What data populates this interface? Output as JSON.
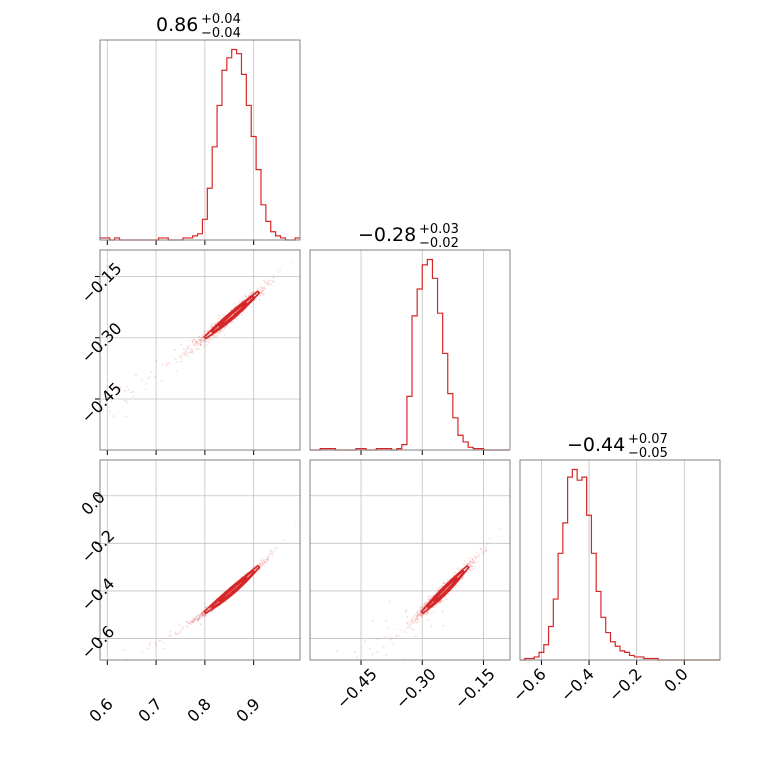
{
  "chart_data": {
    "type": "corner",
    "color": "#d62728",
    "parameters": [
      {
        "title": {
          "median": "0.86",
          "plus": "+0.04",
          "minus": "−0.04"
        },
        "range": [
          0.585,
          0.995
        ],
        "ticks": [
          0.6,
          0.7,
          0.8,
          0.9
        ],
        "tick_labels": [
          "0.6",
          "0.7",
          "0.8",
          "0.9"
        ],
        "hist_x": [
          0.585,
          0.595,
          0.605,
          0.615,
          0.625,
          0.635,
          0.645,
          0.655,
          0.665,
          0.675,
          0.685,
          0.695,
          0.705,
          0.715,
          0.725,
          0.735,
          0.745,
          0.755,
          0.765,
          0.775,
          0.785,
          0.795,
          0.805,
          0.815,
          0.825,
          0.835,
          0.845,
          0.855,
          0.865,
          0.875,
          0.885,
          0.895,
          0.905,
          0.915,
          0.925,
          0.935,
          0.945,
          0.955,
          0.965,
          0.975,
          0.985,
          0.995
        ],
        "hist_y": [
          1,
          1,
          0,
          1,
          0,
          0,
          0,
          0,
          0,
          0,
          0,
          0,
          1,
          1,
          0,
          0,
          0,
          1,
          1,
          2,
          3,
          10,
          25,
          45,
          65,
          82,
          88,
          92,
          90,
          80,
          65,
          50,
          34,
          17,
          9,
          4,
          2,
          1,
          0,
          0,
          1
        ]
      },
      {
        "title": {
          "median": "−0.28",
          "plus": "+0.03",
          "minus": "−0.02"
        },
        "range": [
          -0.575,
          -0.085
        ],
        "ticks": [
          -0.45,
          -0.3,
          -0.15
        ],
        "tick_labels": [
          "−0.45",
          "−0.30",
          "−0.15"
        ],
        "hist_x": [
          -0.575,
          -0.5625,
          -0.55,
          -0.5375,
          -0.525,
          -0.5125,
          -0.5,
          -0.4875,
          -0.475,
          -0.4625,
          -0.45,
          -0.4375,
          -0.425,
          -0.4125,
          -0.4,
          -0.3875,
          -0.375,
          -0.3625,
          -0.35,
          -0.3375,
          -0.325,
          -0.3125,
          -0.3,
          -0.2875,
          -0.275,
          -0.2625,
          -0.25,
          -0.2375,
          -0.225,
          -0.2125,
          -0.2,
          -0.1875,
          -0.175,
          -0.1625,
          -0.15,
          -0.1375,
          -0.125,
          -0.1125,
          -0.1,
          -0.0875
        ],
        "hist_y": [
          0,
          0,
          1,
          1,
          1,
          0,
          0,
          0,
          0,
          1,
          1,
          0,
          0,
          1,
          1,
          1,
          0,
          1,
          4,
          40,
          100,
          120,
          138,
          142,
          128,
          102,
          72,
          42,
          24,
          11,
          6,
          2,
          1,
          1,
          0,
          0,
          0,
          0,
          0
        ]
      },
      {
        "title": {
          "median": "−0.44",
          "plus": "+0.07",
          "minus": "−0.05"
        },
        "range": [
          -0.69,
          0.15
        ],
        "ticks": [
          -0.6,
          -0.4,
          -0.2,
          0.0
        ],
        "tick_labels": [
          "−0.6",
          "−0.4",
          "−0.2",
          "0.0"
        ],
        "hist_x": [
          -0.69,
          -0.67,
          -0.65,
          -0.63,
          -0.61,
          -0.59,
          -0.57,
          -0.55,
          -0.53,
          -0.51,
          -0.49,
          -0.47,
          -0.45,
          -0.43,
          -0.41,
          -0.39,
          -0.37,
          -0.35,
          -0.33,
          -0.31,
          -0.29,
          -0.27,
          -0.25,
          -0.23,
          -0.21,
          -0.19,
          -0.17,
          -0.15,
          -0.13,
          -0.11,
          -0.09,
          -0.07,
          -0.05,
          -0.03,
          -0.01,
          0.01,
          0.03,
          0.05,
          0.07,
          0.09,
          0.11,
          0.13,
          0.15
        ],
        "hist_y": [
          0,
          1,
          1,
          2,
          5,
          10,
          22,
          40,
          70,
          90,
          120,
          125,
          118,
          120,
          95,
          70,
          45,
          28,
          18,
          12,
          9,
          6,
          5,
          3,
          2,
          2,
          1,
          1,
          1,
          0,
          0,
          0,
          0,
          0,
          0,
          0,
          0,
          0,
          0,
          0,
          0,
          0
        ]
      }
    ],
    "left_tick_labels": {
      "row1": [
        "−0.15",
        "−0.30",
        "−0.45"
      ],
      "row2": [
        "0.0",
        "−0.2",
        "−0.4",
        "−0.6"
      ]
    },
    "contour_levels": 3,
    "grid": true
  }
}
